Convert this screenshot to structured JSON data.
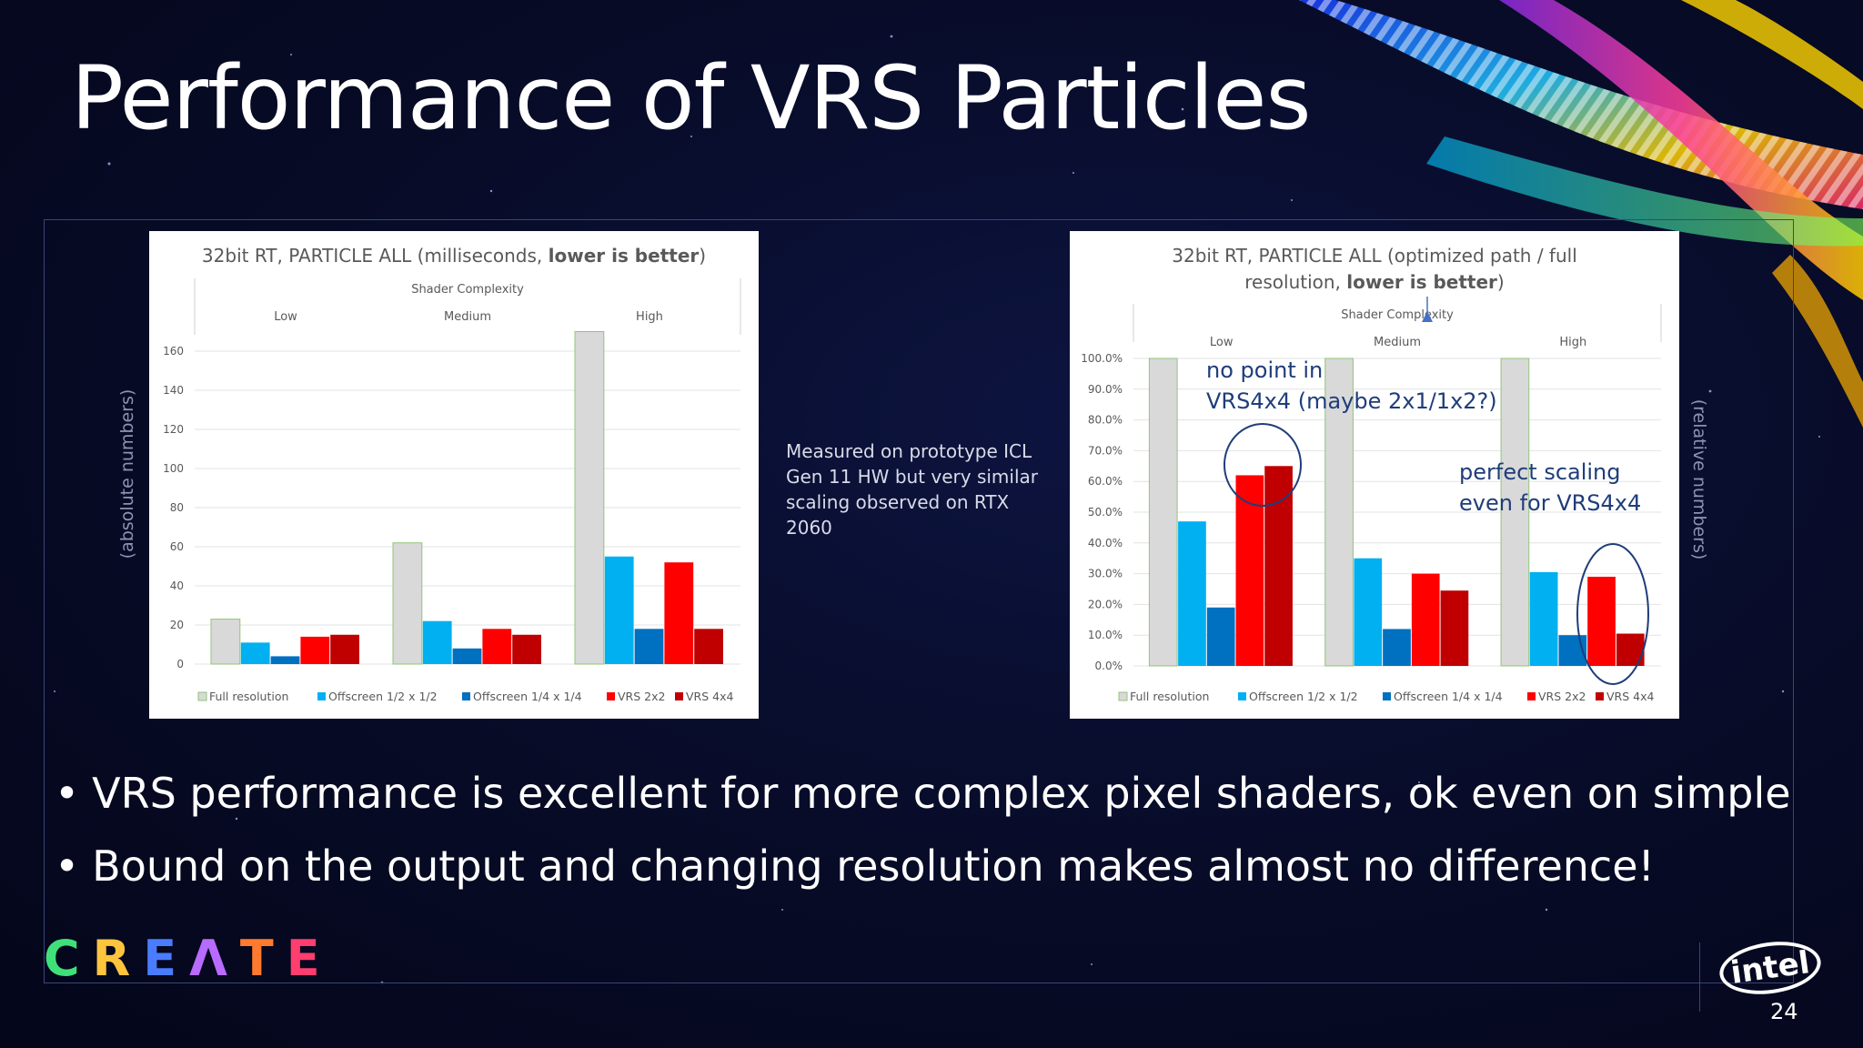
{
  "slide": {
    "title": "Performance of VRS Particles",
    "left_side_label": "(absolute numbers)",
    "right_side_label": "(relative numbers)",
    "note": "Measured on prototype ICL Gen 11 HW but very similar scaling observed on RTX 2060",
    "annotation_1": [
      "no point in",
      "VRS4x4 (maybe 2x1/1x2?)"
    ],
    "annotation_2": [
      "perfect scaling",
      "even for VRS4x4"
    ],
    "bullets": [
      "VRS performance is excellent for more complex pixel shaders, ok even on simple",
      "Bound on the output and changing resolution makes almost no difference!"
    ],
    "logo_letters": [
      "C",
      "R",
      "E",
      "Λ",
      "T",
      "E"
    ],
    "brand": "intel",
    "page_number": "24"
  },
  "chart_data": [
    {
      "type": "bar",
      "title_normal": "32bit RT, PARTICLE ALL (milliseconds, ",
      "title_bold": "lower is better",
      "title_end": ")",
      "header": "Shader Complexity",
      "categories": [
        "Low",
        "Medium",
        "High"
      ],
      "ylim": [
        0,
        160
      ],
      "yticks": [
        "0",
        "20",
        "40",
        "60",
        "80",
        "100",
        "120",
        "140",
        "160"
      ],
      "series": [
        {
          "name": "Full resolution",
          "color": "#d9d9d9",
          "values": [
            23,
            62,
            170
          ]
        },
        {
          "name": "Offscreen 1/2 x 1/2",
          "color": "#00b0f0",
          "values": [
            11,
            22,
            55
          ]
        },
        {
          "name": "Offscreen 1/4 x 1/4",
          "color": "#0070c0",
          "values": [
            4,
            8,
            18
          ]
        },
        {
          "name": "VRS 2x2",
          "color": "#ff0000",
          "values": [
            14,
            18,
            52
          ]
        },
        {
          "name": "VRS 4x4",
          "color": "#c00000",
          "values": [
            15,
            15,
            18
          ]
        }
      ]
    },
    {
      "type": "bar",
      "title_normal": "32bit RT, PARTICLE ALL (optimized path / full",
      "title_line2_normal": "resolution, ",
      "title_bold": "lower is better",
      "title_end": ")",
      "header": "Shader Complexity",
      "categories": [
        "Low",
        "Medium",
        "High"
      ],
      "ylim": [
        0,
        100
      ],
      "yticks": [
        "0.0%",
        "10.0%",
        "20.0%",
        "30.0%",
        "40.0%",
        "50.0%",
        "60.0%",
        "70.0%",
        "80.0%",
        "90.0%",
        "100.0%"
      ],
      "series": [
        {
          "name": "Full resolution",
          "color": "#d9d9d9",
          "values": [
            100,
            100,
            100
          ]
        },
        {
          "name": "Offscreen 1/2 x 1/2",
          "color": "#00b0f0",
          "values": [
            47,
            35,
            30.5
          ]
        },
        {
          "name": "Offscreen 1/4 x 1/4",
          "color": "#0070c0",
          "values": [
            19,
            12,
            10
          ]
        },
        {
          "name": "VRS 2x2",
          "color": "#ff0000",
          "values": [
            62,
            30,
            29
          ]
        },
        {
          "name": "VRS 4x4",
          "color": "#c00000",
          "values": [
            65,
            24.5,
            10.5
          ]
        }
      ]
    }
  ]
}
